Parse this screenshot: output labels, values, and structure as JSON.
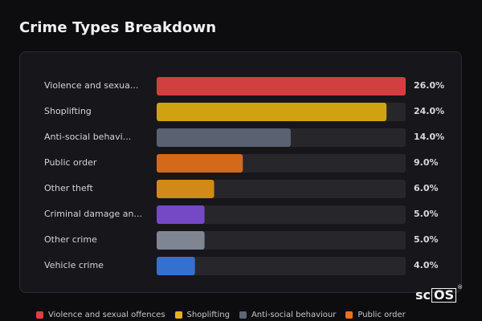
{
  "title": "Crime Types Breakdown",
  "chart_data": {
    "type": "bar",
    "orientation": "horizontal",
    "title": "Crime Types Breakdown",
    "categories": [
      "Violence and sexua...",
      "Shoplifting",
      "Anti-social behavi...",
      "Public order",
      "Other theft",
      "Criminal damage an...",
      "Other crime",
      "Vehicle crime"
    ],
    "values": [
      26.0,
      24.0,
      14.0,
      9.0,
      6.0,
      5.0,
      5.0,
      4.0
    ],
    "value_labels": [
      "26.0%",
      "24.0%",
      "14.0%",
      "9.0%",
      "6.0%",
      "5.0%",
      "5.0%",
      "4.0%"
    ],
    "colors": [
      "#d23f41",
      "#d1a20f",
      "#5a6271",
      "#d3691a",
      "#d28a17",
      "#7548c6",
      "#7f8591",
      "#3670cf"
    ],
    "xlim": [
      0,
      26
    ],
    "grid": false,
    "legend": [
      {
        "label": "Violence and sexual offences",
        "color": "#d9403f"
      },
      {
        "label": "Shoplifting",
        "color": "#e8b20f"
      },
      {
        "label": "Anti-social behaviour",
        "color": "#5d6676"
      },
      {
        "label": "Public order",
        "color": "#e8731a"
      }
    ]
  },
  "logo": {
    "prefix": "sc",
    "boxed": "OS",
    "mark": "®"
  }
}
